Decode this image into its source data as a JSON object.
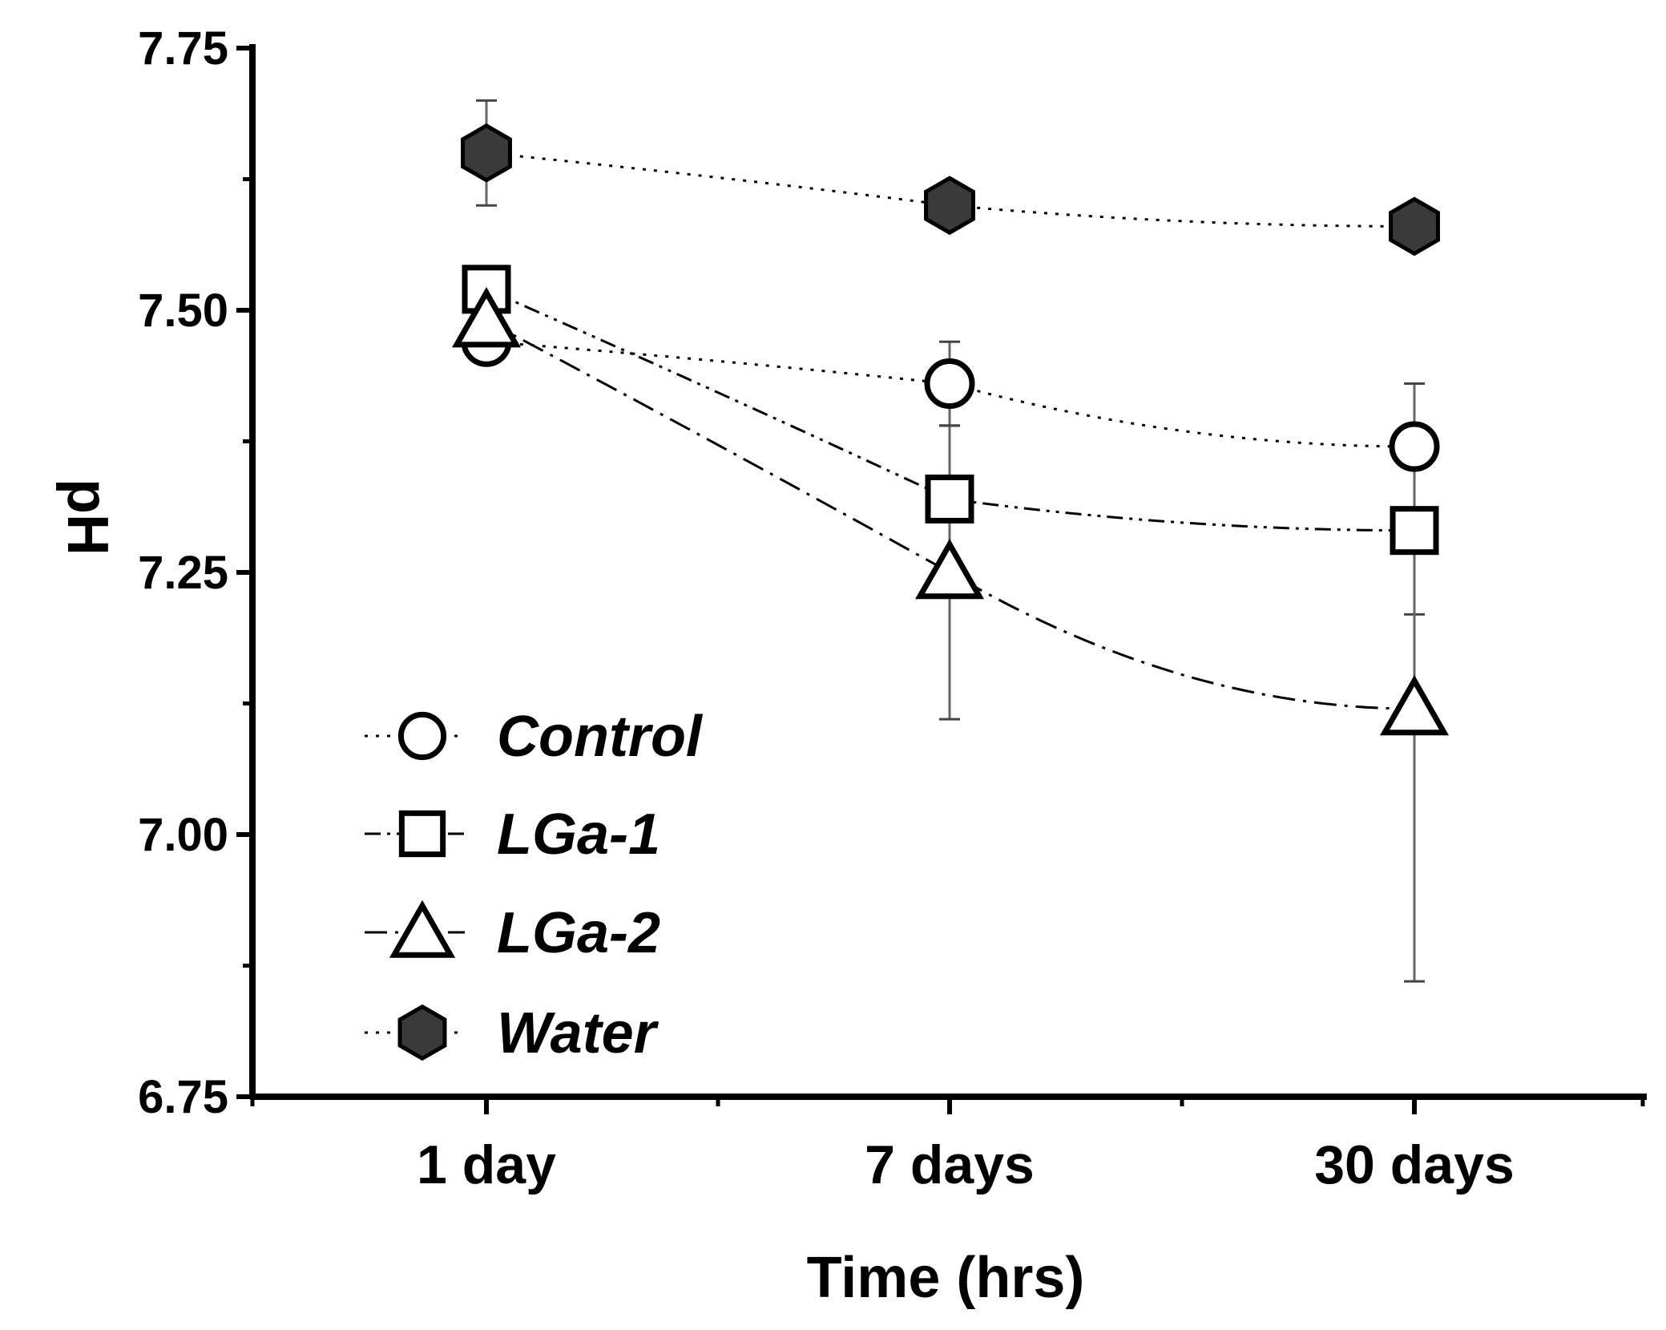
{
  "chart_data": {
    "type": "line",
    "title": "",
    "xlabel": "Time (hrs)",
    "ylabel": "pH",
    "categories": [
      "1 day",
      "7 days",
      "30 days"
    ],
    "ylim": [
      6.75,
      7.75
    ],
    "yticks": [
      6.75,
      7.0,
      7.25,
      7.5,
      7.75
    ],
    "ytick_labels": [
      "6.75",
      "7.00",
      "7.25",
      "7.50",
      "7.75"
    ],
    "grid": false,
    "legend_position": "bottom-left",
    "series": [
      {
        "name": "Control",
        "marker": "circle",
        "fill": "#ffffff",
        "linestyle": "dotted",
        "values": [
          7.47,
          7.43,
          7.37
        ],
        "errors": [
          0.01,
          0.04,
          0.06
        ]
      },
      {
        "name": "LGa-1",
        "marker": "square",
        "fill": "#ffffff",
        "linestyle": "dash-dot-dot",
        "values": [
          7.52,
          7.32,
          7.29
        ],
        "errors": [
          0.01,
          0.07,
          0.08
        ]
      },
      {
        "name": "LGa-2",
        "marker": "triangle",
        "fill": "#ffffff",
        "linestyle": "dash-dot",
        "values": [
          7.49,
          7.25,
          7.12
        ],
        "errors": [
          0.02,
          0.14,
          0.26
        ]
      },
      {
        "name": "Water",
        "marker": "hexagon",
        "fill": "#3a3a3a",
        "linestyle": "dotted",
        "values": [
          7.65,
          7.6,
          7.58
        ],
        "errors": [
          0.05,
          0.01,
          0.01
        ]
      }
    ]
  }
}
